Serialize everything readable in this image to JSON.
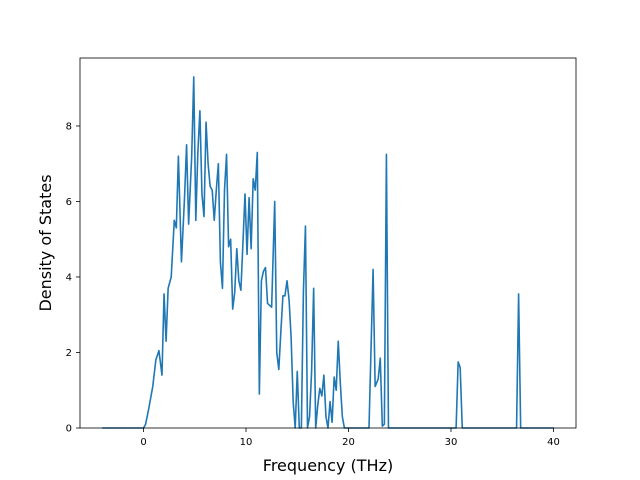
{
  "chart_data": {
    "type": "line",
    "title": "",
    "xlabel": "Frequency (THz)",
    "ylabel": "Density of States",
    "xlim": [
      -6.2,
      42.2
    ],
    "ylim": [
      0,
      9.8
    ],
    "xticks": [
      0,
      10,
      20,
      30,
      40
    ],
    "yticks": [
      0,
      2,
      4,
      6,
      8
    ],
    "xtick_labels": [
      "0",
      "10",
      "20",
      "30",
      "40"
    ],
    "ytick_labels": [
      "0",
      "2",
      "4",
      "6",
      "8"
    ],
    "grid": false,
    "legend": "none",
    "color": "#1f77b4",
    "series": [
      {
        "x": [
          -4.0,
          -1.0,
          0.0,
          0.2,
          0.5,
          0.9,
          1.2,
          1.5,
          1.8,
          2.0,
          2.2,
          2.4,
          2.7,
          3.0,
          3.2,
          3.4,
          3.7,
          4.0,
          4.2,
          4.4,
          4.7,
          4.9,
          5.1,
          5.3,
          5.5,
          5.7,
          5.9,
          6.1,
          6.3,
          6.5,
          6.7,
          6.9,
          7.1,
          7.3,
          7.5,
          7.7,
          7.9,
          8.1,
          8.3,
          8.5,
          8.7,
          8.9,
          9.1,
          9.3,
          9.5,
          9.7,
          9.9,
          10.1,
          10.3,
          10.5,
          10.7,
          10.9,
          11.1,
          11.3,
          11.5,
          11.7,
          11.9,
          12.1,
          12.3,
          12.5,
          12.8,
          13.0,
          13.2,
          13.4,
          13.6,
          13.8,
          14.0,
          14.2,
          14.4,
          14.6,
          14.8,
          15.0,
          15.2,
          15.4,
          15.6,
          15.8,
          16.0,
          16.2,
          16.4,
          16.6,
          16.8,
          17.0,
          17.2,
          17.4,
          17.6,
          17.8,
          18.0,
          18.2,
          18.4,
          18.6,
          18.8,
          19.0,
          19.2,
          19.4,
          19.6,
          19.8,
          20.0,
          20.2,
          20.5,
          21.0,
          22.0,
          22.4,
          22.6,
          22.9,
          23.1,
          23.3,
          23.5,
          23.7,
          23.9,
          24.1,
          24.3,
          25.0,
          30.0,
          30.5,
          30.7,
          30.9,
          31.1,
          31.3,
          32.0,
          36.0,
          36.4,
          36.6,
          36.8,
          37.2,
          40.0
        ],
        "y": [
          0,
          0,
          0,
          0.1,
          0.5,
          1.1,
          1.8,
          2.05,
          1.4,
          3.55,
          2.3,
          3.7,
          4.0,
          5.5,
          5.3,
          7.2,
          4.4,
          6.1,
          7.5,
          5.4,
          7.2,
          9.3,
          5.5,
          7.3,
          8.4,
          6.2,
          5.6,
          8.1,
          7.0,
          6.4,
          6.3,
          5.5,
          6.3,
          7.0,
          4.4,
          3.7,
          6.3,
          7.25,
          4.8,
          5.0,
          3.15,
          3.6,
          4.75,
          3.9,
          3.65,
          4.9,
          6.2,
          4.6,
          6.1,
          4.75,
          6.6,
          6.3,
          7.3,
          0.9,
          3.9,
          4.15,
          4.25,
          3.3,
          3.25,
          3.2,
          6.0,
          2.0,
          1.55,
          2.55,
          3.5,
          3.5,
          3.9,
          3.4,
          2.4,
          0.7,
          0,
          1.5,
          0,
          0,
          3.6,
          5.35,
          0,
          0.3,
          1.5,
          3.7,
          0,
          0.6,
          1.05,
          0.85,
          1.4,
          0.3,
          0,
          0.7,
          0.15,
          1.35,
          1.0,
          2.3,
          1.2,
          0.3,
          0,
          0,
          0,
          0,
          0,
          0,
          0,
          4.2,
          1.1,
          1.3,
          1.85,
          0.05,
          0.1,
          7.25,
          0,
          0,
          0,
          0,
          0,
          0,
          1.75,
          1.6,
          0,
          0,
          0,
          0,
          0,
          3.55,
          0,
          0,
          0
        ]
      }
    ]
  }
}
